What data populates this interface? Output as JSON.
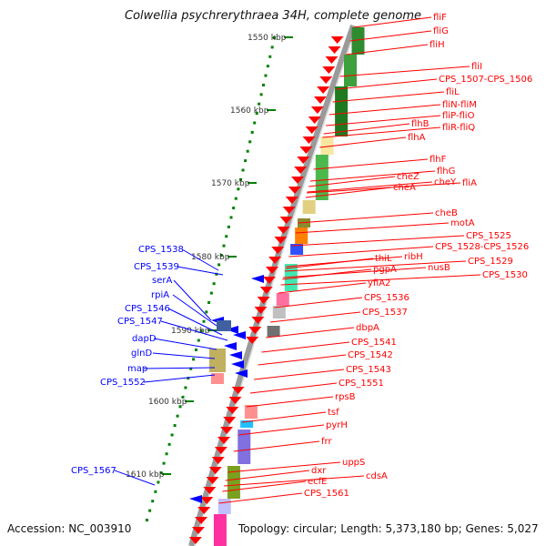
{
  "title": "Colwellia psychrerythraea 34H, complete genome",
  "footer": {
    "accession": "Accession: NC_003910",
    "summary": "Topology: circular; Length: 5,373,180 bp; Genes: 5,027"
  },
  "colors": {
    "forward_gene": "#ff0000",
    "reverse_gene": "#0000ff",
    "tick": "#008000",
    "backbone": "#888888"
  },
  "kbp_ticks": [
    "1550 kbp",
    "1560 kbp",
    "1570 kbp",
    "1580 kbp",
    "1590 kbp",
    "1600 kbp",
    "1610 kbp"
  ],
  "forward_genes": [
    "fliF",
    "fliG",
    "fliH",
    "fliI",
    "CPS_1507-CPS_1506",
    "fliL",
    "fliN-fliM",
    "fliP-fliO",
    "fliR-fliQ",
    "flhB",
    "flhA",
    "flhF",
    "flhG",
    "cheZ",
    "cheY",
    "fliA",
    "cheA",
    "cheB",
    "motA",
    "CPS_1525",
    "CPS_1528-CPS_1526",
    "CPS_1529",
    "CPS_1530",
    "ribH",
    "nusB",
    "thiL",
    "pgpA",
    "yfiA2",
    "CPS_1536",
    "CPS_1537",
    "dbpA",
    "CPS_1541",
    "CPS_1542",
    "CPS_1543",
    "CPS_1551",
    "rpsB",
    "tsf",
    "pyrH",
    "frr",
    "uppS",
    "cdsA",
    "dxr",
    "ecfE",
    "CPS_1561"
  ],
  "reverse_genes": [
    "CPS_1538",
    "CPS_1539",
    "serA",
    "rpiA",
    "CPS_1546",
    "CPS_1547",
    "dapD",
    "glnD",
    "map",
    "CPS_1552",
    "CPS_1567"
  ]
}
